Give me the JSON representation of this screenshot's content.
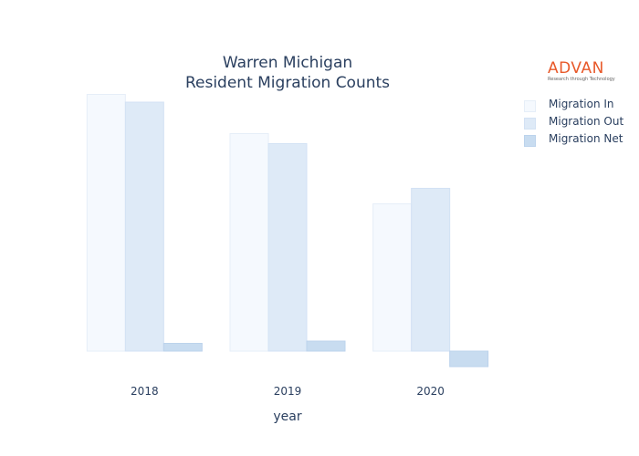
{
  "chart_data": {
    "type": "bar",
    "title_lines": [
      "Warren Michigan",
      "Resident Migration Counts"
    ],
    "xlabel": "year",
    "ylabel": "",
    "categories": [
      "2018",
      "2019",
      "2020"
    ],
    "series": [
      {
        "name": "Migration In",
        "values": [
          5630,
          4770,
          3230
        ],
        "color": "#f5f9fe",
        "stroke": "#e6eef8"
      },
      {
        "name": "Migration Out",
        "values": [
          5460,
          4550,
          3570
        ],
        "color": "#deeaf7",
        "stroke": "#d3e2f4"
      },
      {
        "name": "Migration Net",
        "values": [
          170,
          220,
          -340
        ],
        "color": "#c8dcf0",
        "stroke": "#bcd3ec"
      }
    ],
    "ylim": [
      -400,
      5700
    ],
    "grid": false,
    "legend": "right"
  },
  "logo": {
    "main": "ADVAN",
    "sub": "Research through Technology"
  }
}
